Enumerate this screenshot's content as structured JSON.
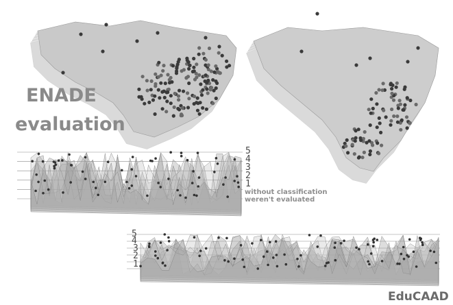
{
  "title": {
    "line1": "ENADE",
    "line2": "evaluation"
  },
  "scale_top": {
    "levels": [
      "5",
      "4",
      "3",
      "2",
      "1"
    ],
    "without_classification": "without classification",
    "not_evaluated": "weren't evaluated"
  },
  "scale_bottom": {
    "levels": [
      "5",
      "4",
      "3",
      "2",
      "1"
    ]
  },
  "brand": "EduCAAD",
  "colors": {
    "map_fill": "#cfcfcf",
    "map_layer": "#bdbdbd",
    "dot": "#3a3a3a",
    "label": "#8a8a8a"
  }
}
